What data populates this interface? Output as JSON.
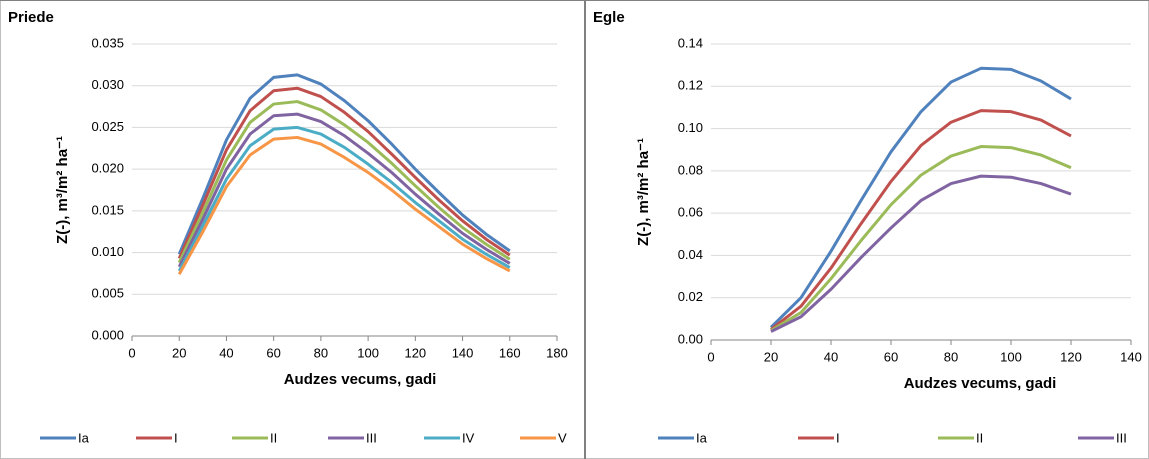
{
  "chart_data": [
    {
      "type": "line",
      "title": "Priede",
      "x_label": "Audzes vecums, gadi",
      "y_label": "Z(-), m³/m² ha⁻¹",
      "x": [
        20,
        30,
        40,
        50,
        60,
        70,
        80,
        90,
        100,
        110,
        120,
        130,
        140,
        150,
        160
      ],
      "xlim": [
        0,
        180
      ],
      "xticks": [
        0,
        20,
        40,
        60,
        80,
        100,
        120,
        140,
        160,
        180
      ],
      "ylim": [
        0,
        0.035
      ],
      "yticks": [
        {
          "value": 0,
          "label": "0.000"
        },
        0.005,
        {
          "value": 0.01,
          "label": "0.010"
        },
        0.015,
        {
          "value": 0.02,
          "label": "0.020"
        },
        0.025,
        {
          "value": 0.03,
          "label": "0.030"
        },
        0.035
      ],
      "legend": "bottom",
      "series": [
        {
          "name": "Ia",
          "color": "#4f81bd",
          "values": [
            0.0098,
            0.0165,
            0.0235,
            0.0285,
            0.031,
            0.0313,
            0.0302,
            0.0282,
            0.0258,
            0.023,
            0.02,
            0.0172,
            0.0145,
            0.0122,
            0.0102
          ]
        },
        {
          "name": "I",
          "color": "#c0504d",
          "values": [
            0.0093,
            0.0157,
            0.0223,
            0.027,
            0.0294,
            0.0297,
            0.0287,
            0.0268,
            0.0245,
            0.0218,
            0.019,
            0.0163,
            0.0138,
            0.0116,
            0.0097
          ]
        },
        {
          "name": "II",
          "color": "#9bbb59",
          "values": [
            0.0088,
            0.0148,
            0.0211,
            0.0256,
            0.0278,
            0.0281,
            0.0271,
            0.0253,
            0.0232,
            0.0207,
            0.018,
            0.0154,
            0.013,
            0.011,
            0.0092
          ]
        },
        {
          "name": "III",
          "color": "#8064a2",
          "values": [
            0.0083,
            0.014,
            0.02,
            0.0242,
            0.0264,
            0.0266,
            0.0257,
            0.024,
            0.0219,
            0.0196,
            0.017,
            0.0146,
            0.0123,
            0.0104,
            0.0087
          ]
        },
        {
          "name": "IV",
          "color": "#4bacc6",
          "values": [
            0.0078,
            0.0132,
            0.0188,
            0.0228,
            0.0248,
            0.025,
            0.0242,
            0.0226,
            0.0206,
            0.0184,
            0.016,
            0.0138,
            0.0116,
            0.0098,
            0.0082
          ]
        },
        {
          "name": "V",
          "color": "#f79646",
          "values": [
            0.0074,
            0.0125,
            0.0179,
            0.0217,
            0.0236,
            0.0238,
            0.023,
            0.0214,
            0.0196,
            0.0175,
            0.0152,
            0.0131,
            0.011,
            0.0093,
            0.0078
          ]
        }
      ]
    },
    {
      "type": "line",
      "title": "Egle",
      "x_label": "Audzes vecums, gadi",
      "y_label": "Z(-), m³/m² ha⁻¹",
      "x": [
        20,
        30,
        40,
        50,
        60,
        70,
        80,
        90,
        100,
        110,
        120
      ],
      "xlim": [
        0,
        140
      ],
      "xticks": [
        0,
        20,
        40,
        60,
        80,
        100,
        120,
        140
      ],
      "ylim": [
        0,
        0.14
      ],
      "yticks": [
        {
          "value": 0,
          "label": "0.00"
        },
        0.02,
        0.04,
        0.06,
        0.08,
        {
          "value": 0.1,
          "label": "0.10"
        },
        0.12,
        0.14
      ],
      "legend": "bottom",
      "series": [
        {
          "name": "Ia",
          "color": "#4f81bd",
          "values": [
            0.006,
            0.02,
            0.042,
            0.066,
            0.089,
            0.108,
            0.122,
            0.1285,
            0.128,
            0.1225,
            0.114
          ]
        },
        {
          "name": "I",
          "color": "#c0504d",
          "values": [
            0.005,
            0.016,
            0.034,
            0.055,
            0.075,
            0.092,
            0.103,
            0.1085,
            0.108,
            0.104,
            0.0965
          ]
        },
        {
          "name": "II",
          "color": "#9bbb59",
          "values": [
            0.0045,
            0.013,
            0.029,
            0.047,
            0.064,
            0.078,
            0.087,
            0.0915,
            0.091,
            0.0875,
            0.0815
          ]
        },
        {
          "name": "III",
          "color": "#8064a2",
          "values": [
            0.004,
            0.011,
            0.024,
            0.039,
            0.053,
            0.066,
            0.074,
            0.0775,
            0.077,
            0.074,
            0.069
          ]
        }
      ]
    }
  ]
}
